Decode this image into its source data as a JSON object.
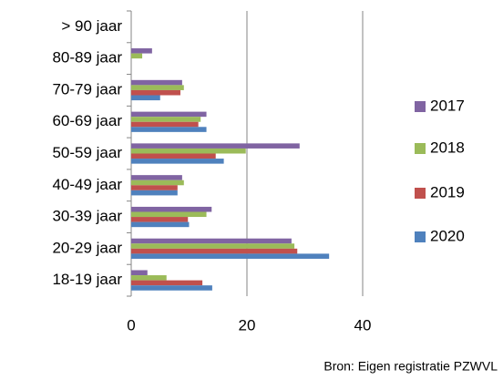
{
  "chart_data": {
    "type": "bar",
    "orientation": "horizontal",
    "categories": [
      "18-19 jaar",
      "20-29 jaar",
      "30-39 jaar",
      "40-49 jaar",
      "50-59 jaar",
      "60-69 jaar",
      "70-79 jaar",
      "80-89 jaar",
      "> 90 jaar"
    ],
    "series": [
      {
        "name": "2017",
        "color": "#8064a2",
        "values": [
          2.8,
          27.7,
          13.9,
          8.8,
          29.1,
          13,
          8.8,
          3.6,
          0
        ]
      },
      {
        "name": "2018",
        "color": "#9bbb59",
        "values": [
          6.1,
          28.2,
          13,
          9.1,
          19.8,
          12,
          9.1,
          1.9,
          0
        ]
      },
      {
        "name": "2019",
        "color": "#c0504d",
        "values": [
          12.3,
          28.7,
          9.8,
          8,
          14.6,
          11.6,
          8.5,
          0,
          0
        ]
      },
      {
        "name": "2020",
        "color": "#4f81bd",
        "values": [
          14,
          34.2,
          10,
          8,
          16,
          13,
          5,
          0,
          0
        ]
      }
    ],
    "xlim": [
      0,
      40
    ],
    "xticks": [
      0,
      20,
      40
    ],
    "grid": true,
    "legend": "right",
    "source": "Bron: Eigen registratie PZWVL"
  }
}
